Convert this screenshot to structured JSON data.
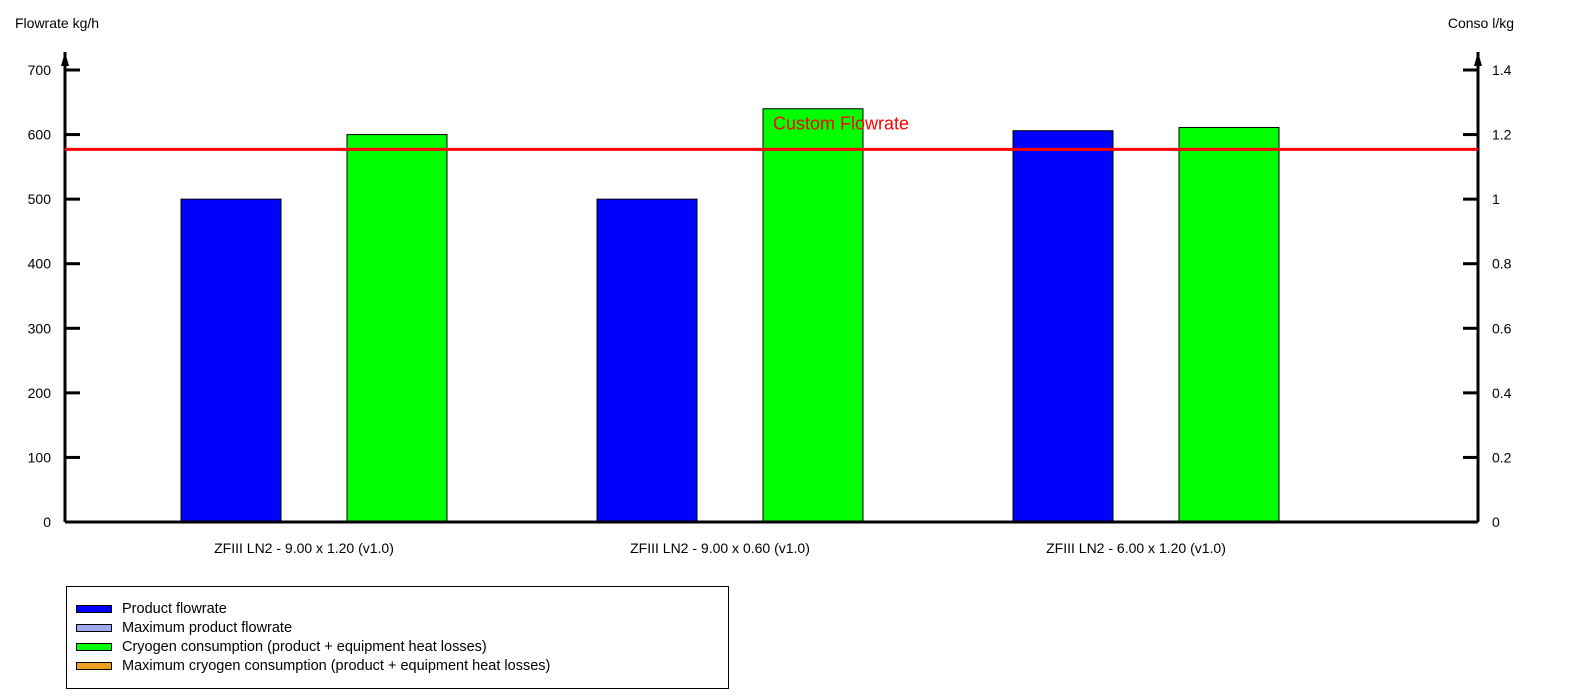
{
  "chart_data": {
    "type": "bar",
    "ylabel_left": "Flowrate kg/h",
    "ylabel_right": "Conso l/kg",
    "ylim_left": [
      0,
      700
    ],
    "ylim_right": [
      0,
      1.4
    ],
    "yticks_left": [
      "0",
      "100",
      "200",
      "300",
      "400",
      "500",
      "600",
      "700"
    ],
    "yticks_right": [
      "0",
      "0.2",
      "0.4",
      "0.6",
      "0.8",
      "1",
      "1.2",
      "1.4"
    ],
    "categories": [
      "ZFIII LN2 - 9.00 x 1.20 (v1.0)",
      "ZFIII LN2 - 9.00 x 0.60 (v1.0)",
      "ZFIII LN2 - 6.00 x 1.20 (v1.0)"
    ],
    "series": [
      {
        "name": "Product flowrate",
        "color": "#0000ff",
        "values": [
          500,
          500,
          606
        ]
      },
      {
        "name": "Cryogen consumption (product + equipment heat losses)",
        "color": "#00ff00",
        "values": [
          600,
          640,
          611
        ]
      }
    ],
    "reference_line": {
      "label": "Custom Flowrate",
      "value": 577,
      "color": "#ff0000"
    },
    "legend": {
      "position": "bottom-left",
      "items": [
        {
          "label": "Product flowrate",
          "color": "#0000ff"
        },
        {
          "label": "Maximum product flowrate",
          "color": "#a0a8f0"
        },
        {
          "label": "Cryogen consumption (product + equipment heat losses)",
          "color": "#00ff00"
        },
        {
          "label": "Maximum cryogen consumption (product + equipment heat losses)",
          "color": "#f0a020"
        }
      ]
    },
    "grid": false
  }
}
